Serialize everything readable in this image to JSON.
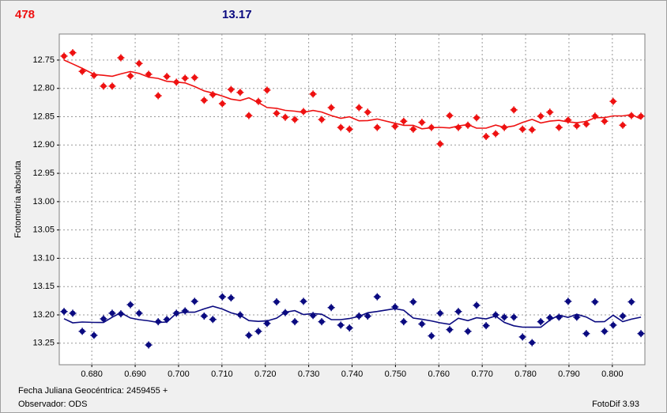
{
  "header": {
    "left_value": "478",
    "right_value": "13.17"
  },
  "footer": {
    "date_label": "Fecha Juliana Geocéntrica: 2459455 +",
    "observer": "Observador: ODS",
    "software": "FotoDif 3.93"
  },
  "chart_data": {
    "type": "scatter",
    "y_label": "Fotometría absoluta",
    "xlim": [
      0.6725,
      0.8075
    ],
    "ylim": [
      12.704,
      13.288
    ],
    "y_inverted": true,
    "grid": true,
    "trend_line": true,
    "xticks": [
      {
        "value": 0.68,
        "label": "0.680"
      },
      {
        "value": 0.69,
        "label": "0.690"
      },
      {
        "value": 0.7,
        "label": "0.700"
      },
      {
        "value": 0.71,
        "label": "0.710"
      },
      {
        "value": 0.72,
        "label": "0.720"
      },
      {
        "value": 0.73,
        "label": "0.730"
      },
      {
        "value": 0.74,
        "label": "0.740"
      },
      {
        "value": 0.75,
        "label": "0.750"
      },
      {
        "value": 0.76,
        "label": "0.760"
      },
      {
        "value": 0.77,
        "label": "0.770"
      },
      {
        "value": 0.78,
        "label": "0.780"
      },
      {
        "value": 0.79,
        "label": "0.790"
      },
      {
        "value": 0.8,
        "label": "0.800"
      }
    ],
    "yticks": [
      12.75,
      {
        "value": 12.8,
        "label": "12.80"
      },
      12.85,
      {
        "value": 12.9,
        "label": "12.90"
      },
      12.95,
      {
        "value": 13,
        "label": "13.00"
      },
      13.05,
      {
        "value": 13.1,
        "label": "13.10"
      },
      13.15,
      {
        "value": 13.2,
        "label": "13.20"
      },
      13.25
    ],
    "x": [
      0.6736,
      0.6756,
      0.6778,
      0.6805,
      0.6827,
      0.6847,
      0.6867,
      0.6889,
      0.6909,
      0.6931,
      0.6953,
      0.6973,
      0.6995,
      0.7015,
      0.7037,
      0.7059,
      0.7079,
      0.7101,
      0.7121,
      0.7142,
      0.7162,
      0.7184,
      0.7204,
      0.7226,
      0.7246,
      0.7268,
      0.7288,
      0.731,
      0.733,
      0.7352,
      0.7374,
      0.7394,
      0.7416,
      0.7436,
      0.7458,
      0.7499,
      0.7519,
      0.7541,
      0.7561,
      0.7583,
      0.7603,
      0.7625,
      0.7645,
      0.7667,
      0.7687,
      0.7709,
      0.7731,
      0.7751,
      0.7773,
      0.7793,
      0.7815,
      0.7835,
      0.7856,
      0.7877,
      0.7898,
      0.7918,
      0.794,
      0.796,
      0.7982,
      0.8002,
      0.8024,
      0.8044,
      0.8066
    ],
    "series": [
      {
        "color": "#ee1111",
        "values": [
          12.743,
          12.737,
          12.77,
          12.777,
          12.796,
          12.796,
          12.746,
          12.778,
          12.756,
          12.775,
          12.813,
          12.779,
          12.789,
          12.782,
          12.781,
          12.821,
          12.811,
          12.827,
          12.802,
          12.807,
          12.848,
          12.823,
          12.803,
          12.844,
          12.851,
          12.855,
          12.841,
          12.81,
          12.855,
          12.834,
          12.869,
          12.872,
          12.834,
          12.842,
          12.869,
          12.867,
          12.858,
          12.872,
          12.86,
          12.869,
          12.898,
          12.848,
          12.869,
          12.865,
          12.852,
          12.885,
          12.88,
          12.869,
          12.838,
          12.872,
          12.873,
          12.849,
          12.842,
          12.869,
          12.856,
          12.866,
          12.863,
          12.849,
          12.858,
          12.823,
          12.865,
          12.848,
          12.849
        ]
      },
      {
        "color": "#0a0a80",
        "values": [
          13.194,
          13.197,
          13.229,
          13.236,
          13.207,
          13.197,
          13.198,
          13.182,
          13.197,
          13.253,
          13.212,
          13.208,
          13.197,
          13.193,
          13.176,
          13.202,
          13.208,
          13.168,
          13.17,
          13.2,
          13.236,
          13.229,
          13.215,
          13.177,
          13.196,
          13.212,
          13.176,
          13.201,
          13.212,
          13.187,
          13.218,
          13.223,
          13.202,
          13.202,
          13.168,
          13.186,
          13.212,
          13.177,
          13.216,
          13.237,
          13.197,
          13.226,
          13.194,
          13.229,
          13.183,
          13.219,
          13.2,
          13.204,
          13.204,
          13.239,
          13.249,
          13.212,
          13.205,
          13.204,
          13.176,
          13.204,
          13.233,
          13.177,
          13.229,
          13.218,
          13.202,
          13.177,
          13.233
        ]
      }
    ]
  }
}
